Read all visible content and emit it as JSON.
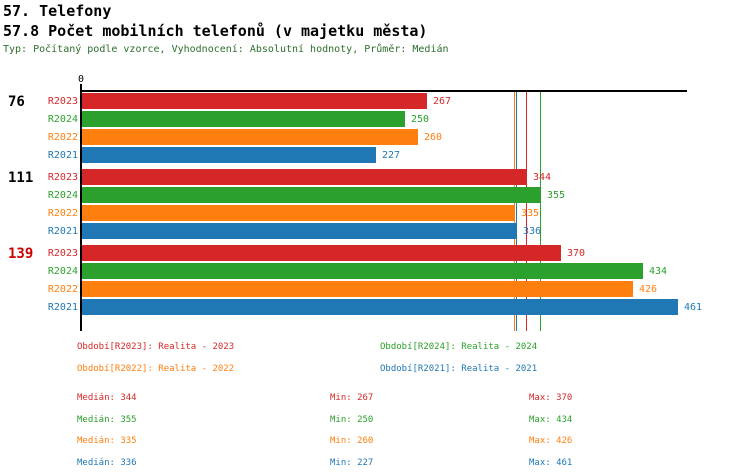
{
  "page": {
    "title": "57. Telefony",
    "subtitle": "57.8 Počet mobilních telefonů (v majetku města)",
    "meta": "Typ: Počítaný podle vzorce, Vyhodnocení: Absolutní hodnoty, Průměr: Medián"
  },
  "chart_data": {
    "type": "bar",
    "orientation": "horizontal",
    "title": "57. Telefony",
    "subtitle": "57.8 Počet mobilních telefonů (v majetku města)",
    "meta_line": "Typ: Počítaný podle vzorce, Vyhodnocení: Absolutní hodnoty, Průměr: Medián",
    "x_axis": {
      "origin_label": "0",
      "min": 0,
      "max": 469,
      "gridlines": false
    },
    "legend_position": "bottom",
    "highlight_color": "#cc0000",
    "series": [
      {
        "id": "R2023",
        "label": "R2023",
        "color": "#d62728",
        "legend": "Období[R2023]: Realita - 2023",
        "median": 344,
        "min": 267,
        "max": 370
      },
      {
        "id": "R2024",
        "label": "R2024",
        "color": "#2ca02c",
        "legend": "Období[R2024]: Realita - 2024",
        "median": 355,
        "min": 250,
        "max": 434
      },
      {
        "id": "R2022",
        "label": "R2022",
        "color": "#ff7f0e",
        "legend": "Období[R2022]: Realita - 2022",
        "median": 335,
        "min": 260,
        "max": 426
      },
      {
        "id": "R2021",
        "label": "R2021",
        "color": "#1f77b4",
        "legend": "Období[R2021]: Realita - 2021",
        "median": 336,
        "min": 227,
        "max": 461
      }
    ],
    "groups": [
      {
        "label": "76",
        "highlight": false,
        "values": [
          267,
          250,
          260,
          227
        ]
      },
      {
        "label": "111",
        "highlight": false,
        "values": [
          344,
          355,
          335,
          336
        ]
      },
      {
        "label": "139",
        "highlight": true,
        "values": [
          370,
          434,
          426,
          461
        ]
      }
    ],
    "stats_labels": {
      "median": "Medián:",
      "min": "Min:",
      "max": "Max:"
    }
  }
}
